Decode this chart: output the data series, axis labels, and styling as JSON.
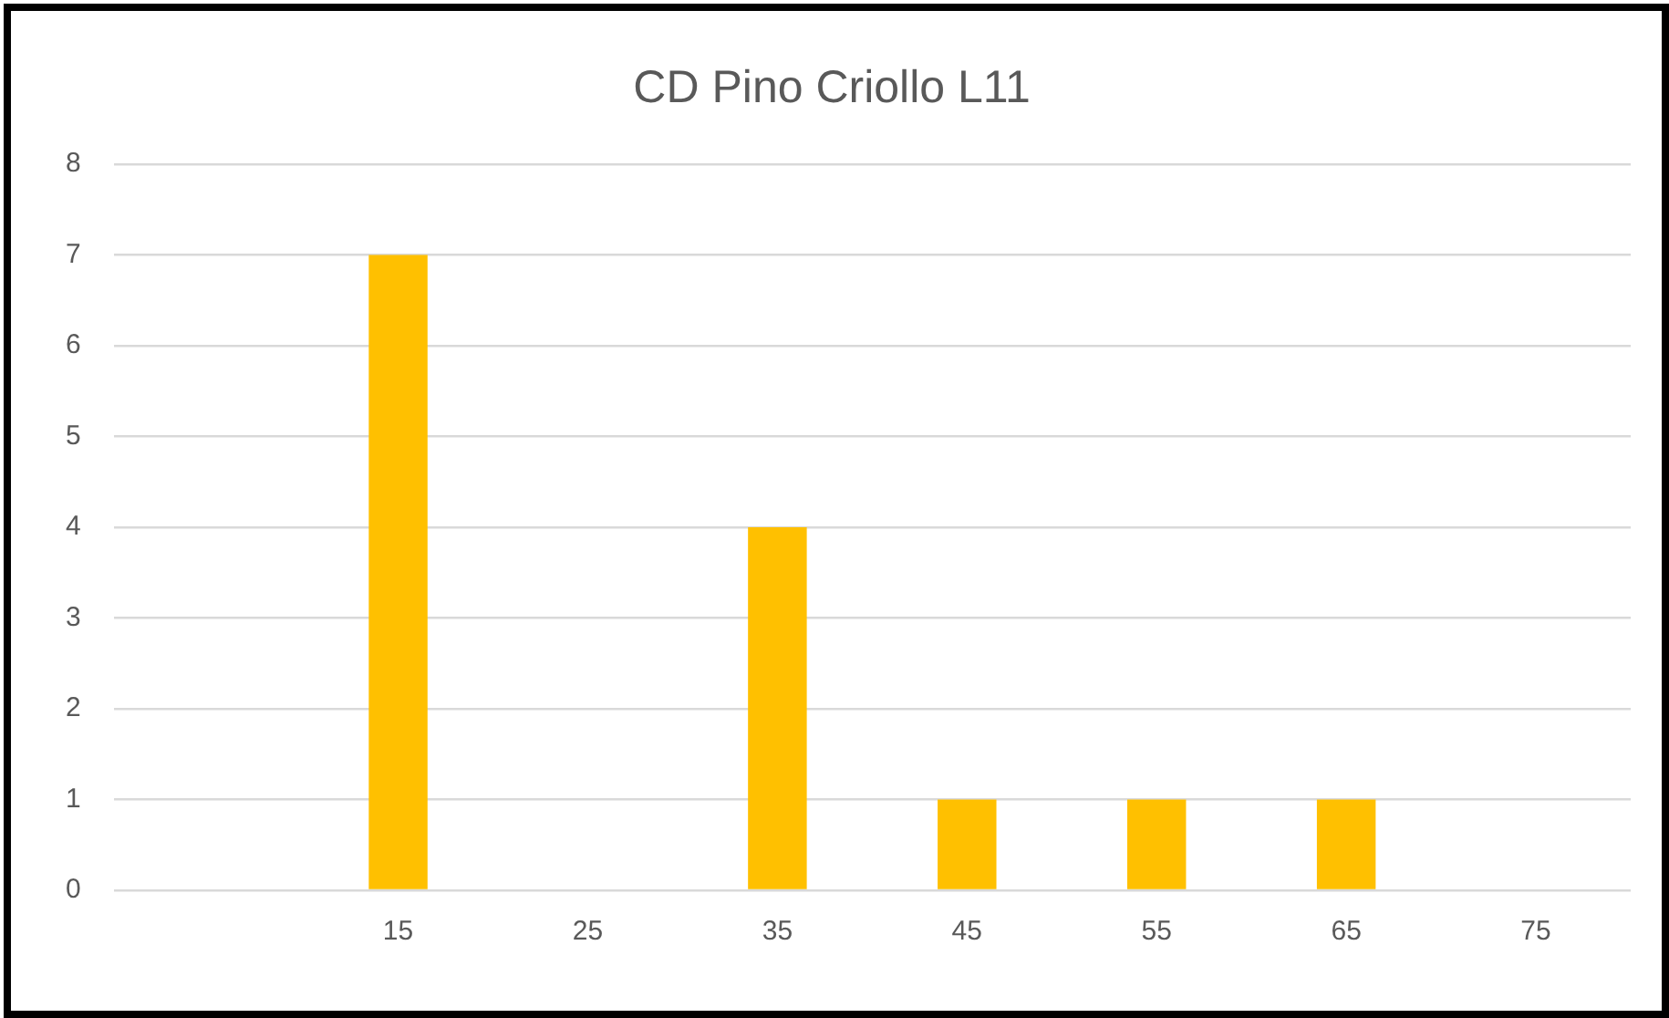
{
  "chart_data": {
    "type": "bar",
    "title": "CD Pino Criollo L11",
    "categories": [
      null,
      "15",
      "25",
      "35",
      "45",
      "55",
      "65",
      "75"
    ],
    "values": [
      0,
      7,
      0,
      4,
      1,
      1,
      1,
      0
    ],
    "color": "#ffc000",
    "ylim": [
      0,
      8
    ],
    "yticks": [
      0,
      1,
      2,
      3,
      4,
      5,
      6,
      7,
      8
    ],
    "grid": "y",
    "legend": false
  }
}
